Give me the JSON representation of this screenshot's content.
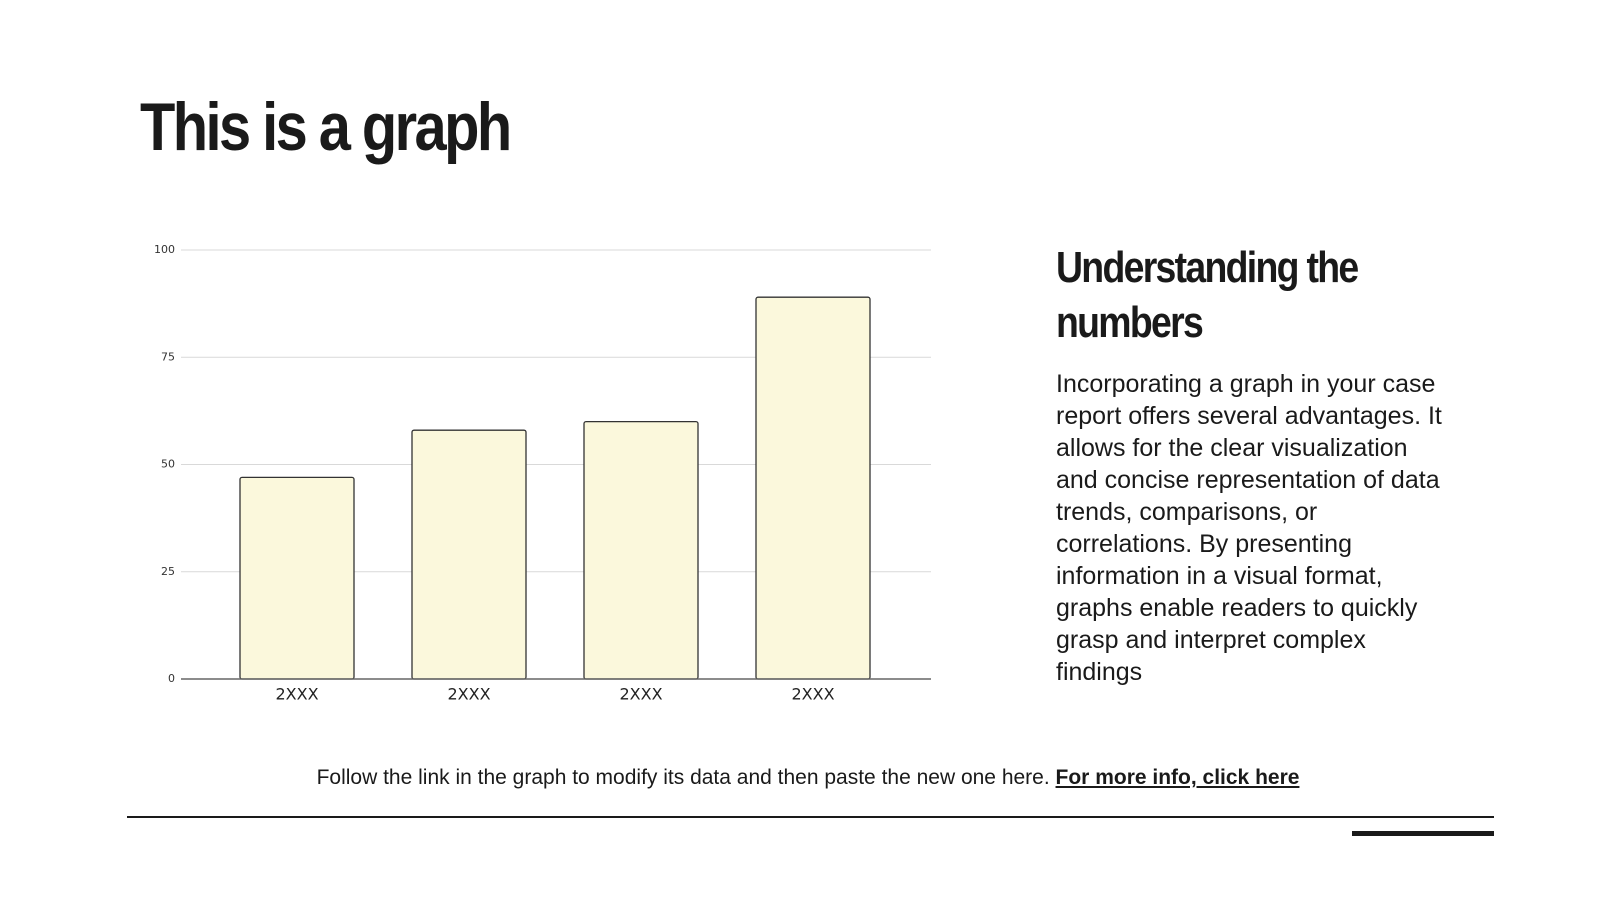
{
  "title": "This is a graph",
  "chart_data": {
    "type": "bar",
    "categories": [
      "2XXX",
      "2XXX",
      "2XXX",
      "2XXX"
    ],
    "values": [
      47,
      58,
      60,
      89
    ],
    "color": "#fbf8dc",
    "edge_color": "#333333",
    "ylim": [
      0,
      100
    ],
    "yticks": [
      0,
      25,
      50,
      75,
      100
    ],
    "grid": true
  },
  "side": {
    "heading": "Understanding the numbers",
    "body": "Incorporating a graph in your case report offers several advantages. It allows for the clear visualization and concise representation of data trends, comparisons, or correlations. By presenting information in a visual format, graphs enable readers to quickly grasp and interpret complex findings"
  },
  "footer": {
    "text": "Follow the link in the graph to modify its data and then paste the new one here.",
    "link": "For more info, click here"
  }
}
